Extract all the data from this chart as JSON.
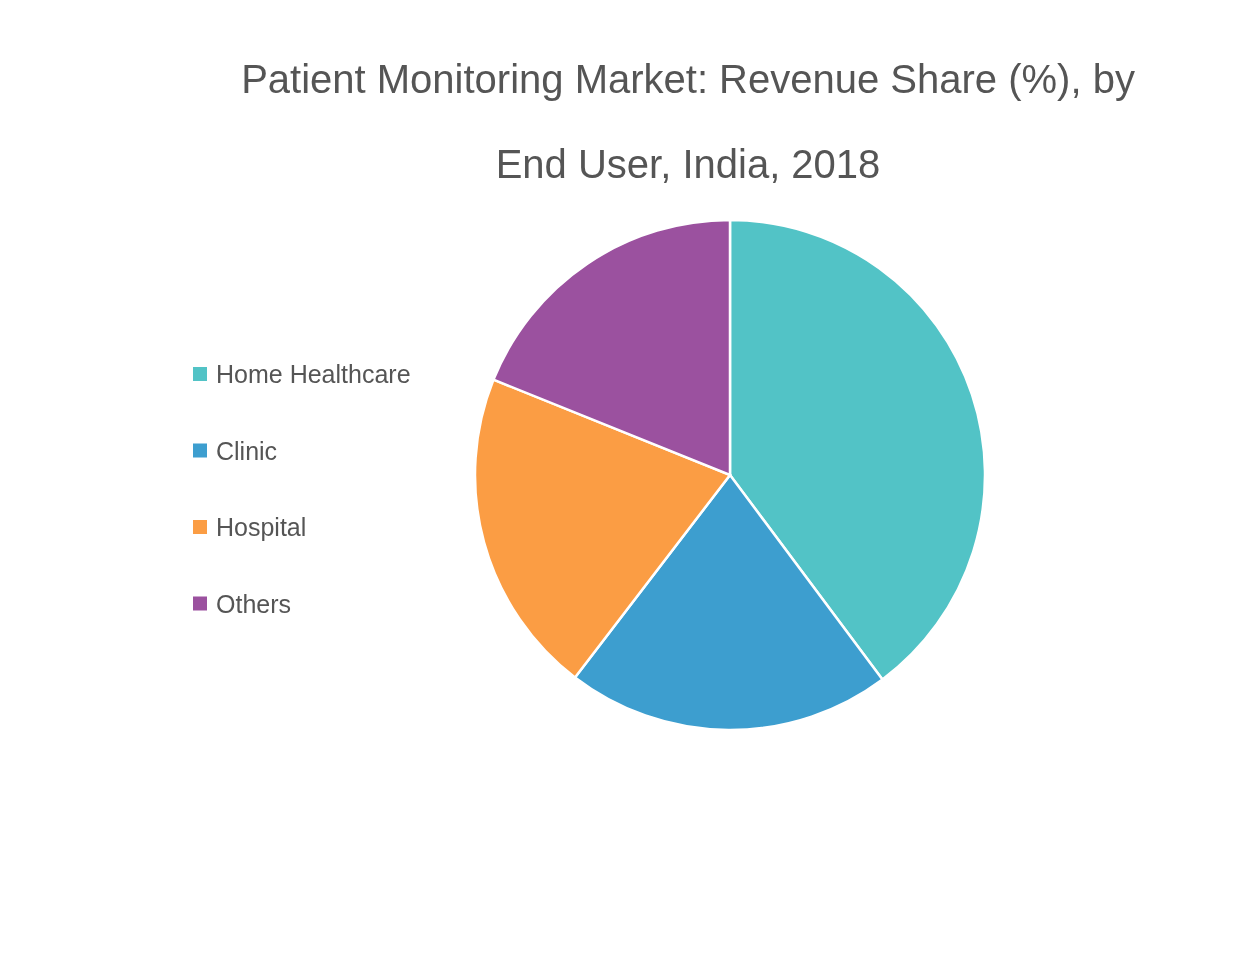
{
  "chart_data": {
    "type": "pie",
    "title": "Patient Monitoring Market: Revenue Share (%), by End User, India, 2018",
    "categories": [
      "Home Healthcare",
      "Clinic",
      "Hospital",
      "Others"
    ],
    "values": [
      39.8,
      20.6,
      20.7,
      18.9
    ],
    "colors": [
      "#52c3c6",
      "#3d9ecf",
      "#fb9d44",
      "#9b519f"
    ],
    "legend": "left"
  }
}
